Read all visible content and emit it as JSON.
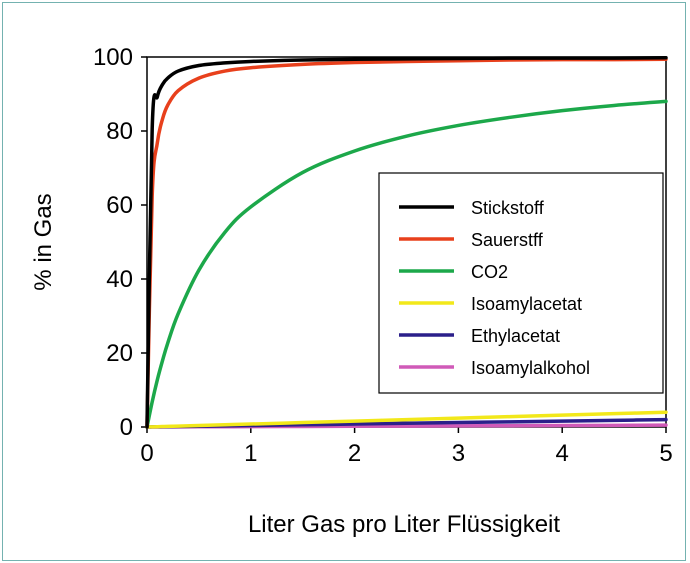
{
  "chart_data": {
    "type": "line",
    "title": "",
    "xlabel": "Liter Gas pro Liter Flüssigkeit",
    "ylabel": "% in Gas",
    "xlim": [
      0,
      5
    ],
    "ylim": [
      0,
      100
    ],
    "xticks": [
      "0",
      "1",
      "2",
      "3",
      "4",
      "5"
    ],
    "yticks": [
      "0",
      "20",
      "40",
      "60",
      "80",
      "100"
    ],
    "grid": false,
    "legend_position": "right",
    "x": [
      0,
      0.05,
      0.1,
      0.15,
      0.2,
      0.3,
      0.5,
      0.75,
      1,
      1.5,
      2,
      2.5,
      3,
      3.5,
      4,
      4.5,
      5
    ],
    "series": [
      {
        "name": "Stickstoff",
        "color": "#000000",
        "values": [
          0,
          80.6,
          89.3,
          92.6,
          94.3,
          96.2,
          97.7,
          98.4,
          98.8,
          99.2,
          99.4,
          99.5,
          99.6,
          99.7,
          99.7,
          99.7,
          99.8
        ]
      },
      {
        "name": "Sauerstff",
        "color": "#e8401c",
        "values": [
          0,
          62.5,
          76.9,
          83.3,
          87.0,
          90.9,
          94.3,
          96.2,
          97.1,
          98.0,
          98.5,
          98.8,
          99.0,
          99.2,
          99.3,
          99.3,
          99.4
        ]
      },
      {
        "name": "CO2",
        "color": "#1ca84a",
        "values": [
          0,
          6.8,
          12.8,
          18.0,
          22.7,
          30.6,
          42.4,
          52.6,
          59.5,
          68.8,
          74.6,
          78.6,
          81.5,
          83.7,
          85.5,
          86.9,
          88.0
        ]
      },
      {
        "name": "Isoamylacetat",
        "color": "#f2e81a",
        "values": [
          0,
          0.04,
          0.08,
          0.12,
          0.16,
          0.24,
          0.4,
          0.6,
          0.8,
          1.2,
          1.6,
          2.0,
          2.4,
          2.8,
          3.2,
          3.6,
          4.0
        ]
      },
      {
        "name": "Ethylacetat",
        "color": "#2b1f8a",
        "values": [
          0,
          0.02,
          0.04,
          0.06,
          0.08,
          0.12,
          0.2,
          0.3,
          0.4,
          0.6,
          0.8,
          1.0,
          1.2,
          1.4,
          1.6,
          1.8,
          2.0
        ]
      },
      {
        "name": "Isoamylalkohol",
        "color": "#d05ab8",
        "values": [
          0,
          0.005,
          0.01,
          0.015,
          0.02,
          0.03,
          0.05,
          0.075,
          0.1,
          0.15,
          0.2,
          0.25,
          0.3,
          0.35,
          0.4,
          0.45,
          0.5
        ]
      }
    ]
  }
}
